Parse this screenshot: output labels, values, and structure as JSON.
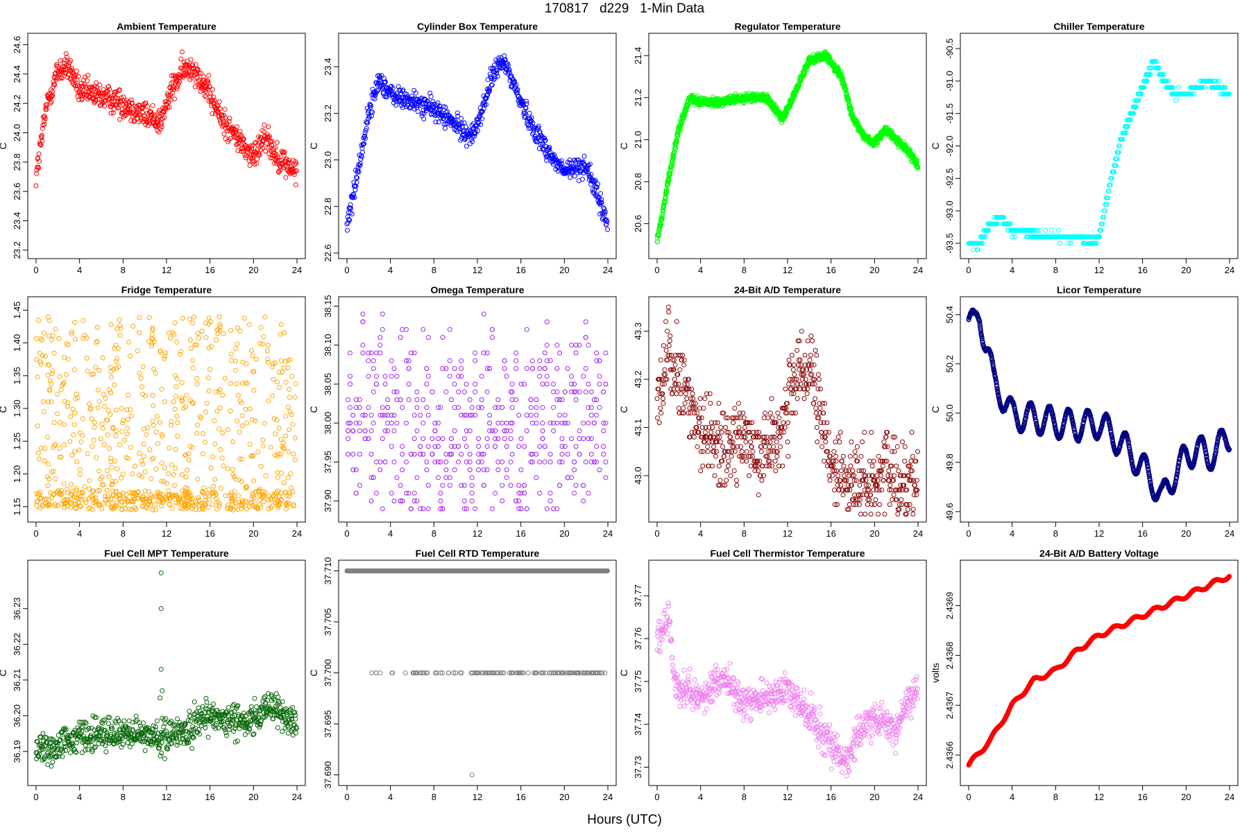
{
  "header": {
    "title": "170817   d229   1-Min Data"
  },
  "footer": {
    "xlabel": "Hours (UTC)"
  },
  "chart_data": [
    {
      "type": "scatter",
      "title": "Ambient Temperature",
      "ylabel": "C",
      "color": "#ff0000",
      "xlim": [
        0,
        24
      ],
      "ylim": [
        23.18,
        24.64
      ],
      "xticks": [
        0,
        4,
        8,
        12,
        16,
        20,
        24
      ],
      "yticks": [
        23.2,
        23.4,
        23.6,
        23.8,
        24.0,
        24.2,
        24.4,
        24.6
      ],
      "ydec": 1,
      "pattern": "noisy",
      "noise": 0.09,
      "min": 23.2,
      "max": 24.62,
      "profile": [
        [
          0,
          23.7
        ],
        [
          0.5,
          23.95
        ],
        [
          1,
          24.2
        ],
        [
          2,
          24.42
        ],
        [
          3,
          24.45
        ],
        [
          4,
          24.28
        ],
        [
          6,
          24.25
        ],
        [
          8,
          24.2
        ],
        [
          10,
          24.12
        ],
        [
          11.5,
          24.08
        ],
        [
          12.5,
          24.3
        ],
        [
          13.5,
          24.42
        ],
        [
          14.5,
          24.45
        ],
        [
          16,
          24.25
        ],
        [
          17,
          24.1
        ],
        [
          19,
          23.92
        ],
        [
          20,
          23.82
        ],
        [
          21,
          24.0
        ],
        [
          22,
          23.85
        ],
        [
          24,
          23.72
        ]
      ]
    },
    {
      "type": "scatter",
      "title": "Cylinder Box Temperature",
      "ylabel": "C",
      "color": "#0000ff",
      "xlim": [
        0,
        24
      ],
      "ylim": [
        22.6,
        23.52
      ],
      "xticks": [
        0,
        4,
        8,
        12,
        16,
        20,
        24
      ],
      "yticks": [
        22.6,
        22.8,
        23.0,
        23.2,
        23.4
      ],
      "ydec": 1,
      "pattern": "noisy",
      "noise": 0.045,
      "min": 22.62,
      "max": 23.5,
      "profile": [
        [
          0,
          22.72
        ],
        [
          1,
          22.95
        ],
        [
          2,
          23.2
        ],
        [
          3,
          23.35
        ],
        [
          4,
          23.28
        ],
        [
          6,
          23.25
        ],
        [
          8,
          23.22
        ],
        [
          10,
          23.15
        ],
        [
          11.5,
          23.1
        ],
        [
          12.5,
          23.22
        ],
        [
          13.5,
          23.38
        ],
        [
          14.5,
          23.42
        ],
        [
          16,
          23.25
        ],
        [
          17,
          23.15
        ],
        [
          19,
          23.0
        ],
        [
          20,
          22.95
        ],
        [
          22,
          22.98
        ],
        [
          24,
          22.72
        ]
      ]
    },
    {
      "type": "scatter",
      "title": "Regulator Temperature",
      "ylabel": "C",
      "color": "#00ff00",
      "xlim": [
        0,
        24
      ],
      "ylim": [
        20.46,
        21.48
      ],
      "xticks": [
        0,
        4,
        8,
        12,
        16,
        20,
        24
      ],
      "yticks": [
        20.6,
        20.8,
        21.0,
        21.2,
        21.4
      ],
      "ydec": 1,
      "pattern": "smooth",
      "noise": 0.018,
      "min": 20.5,
      "max": 21.46,
      "profile": [
        [
          0,
          20.52
        ],
        [
          0.5,
          20.65
        ],
        [
          1,
          20.8
        ],
        [
          2,
          21.05
        ],
        [
          3,
          21.2
        ],
        [
          4,
          21.18
        ],
        [
          6,
          21.18
        ],
        [
          8,
          21.2
        ],
        [
          10,
          21.2
        ],
        [
          11.5,
          21.1
        ],
        [
          12.5,
          21.2
        ],
        [
          14,
          21.38
        ],
        [
          15.5,
          21.4
        ],
        [
          17,
          21.3
        ],
        [
          18,
          21.1
        ],
        [
          19,
          21.02
        ],
        [
          20,
          20.98
        ],
        [
          21,
          21.05
        ],
        [
          22,
          21.0
        ],
        [
          23,
          20.95
        ],
        [
          24,
          20.88
        ]
      ]
    },
    {
      "type": "scatter",
      "title": "Chiller Temperature",
      "ylabel": "C",
      "color": "#00ffff",
      "xlim": [
        0,
        24
      ],
      "ylim": [
        -93.65,
        -90.35
      ],
      "xticks": [
        0,
        4,
        8,
        12,
        16,
        20,
        24
      ],
      "yticks": [
        -93.5,
        -93.0,
        -92.5,
        -92.0,
        -91.5,
        -91.0,
        -90.5
      ],
      "ydec": 1,
      "pattern": "step",
      "step": 0.1,
      "noise": 0.05,
      "min": -93.6,
      "max": -90.4,
      "profile": [
        [
          0,
          -93.5
        ],
        [
          1,
          -93.5
        ],
        [
          2,
          -93.2
        ],
        [
          3,
          -93.1
        ],
        [
          4,
          -93.3
        ],
        [
          6,
          -93.35
        ],
        [
          8,
          -93.4
        ],
        [
          10,
          -93.4
        ],
        [
          11.5,
          -93.45
        ],
        [
          12,
          -93.4
        ],
        [
          13,
          -92.6
        ],
        [
          14,
          -91.9
        ],
        [
          15,
          -91.5
        ],
        [
          16,
          -91.1
        ],
        [
          17,
          -90.7
        ],
        [
          18,
          -91.0
        ],
        [
          19,
          -91.2
        ],
        [
          20,
          -91.2
        ],
        [
          21,
          -91.1
        ],
        [
          22,
          -91.0
        ],
        [
          23,
          -91.1
        ],
        [
          24,
          -91.2
        ]
      ]
    },
    {
      "type": "scatter",
      "title": "Fridge Temperature",
      "ylabel": "C",
      "color": "#ffa500",
      "xlim": [
        0,
        24
      ],
      "ylim": [
        1.135,
        1.462
      ],
      "xticks": [
        0,
        4,
        8,
        12,
        16,
        20,
        24
      ],
      "yticks": [
        1.15,
        1.2,
        1.25,
        1.3,
        1.35,
        1.4,
        1.45
      ],
      "ydec": 2,
      "pattern": "uniform",
      "min": 1.145,
      "max": 1.44
    },
    {
      "type": "scatter",
      "title": "Omega Temperature",
      "ylabel": "C",
      "color": "#a020f0",
      "xlim": [
        0,
        24
      ],
      "ylim": [
        37.88,
        38.155
      ],
      "xticks": [
        0,
        4,
        8,
        12,
        16,
        20,
        24
      ],
      "yticks": [
        37.9,
        37.95,
        38.0,
        38.05,
        38.1,
        38.15
      ],
      "ydec": 2,
      "pattern": "bands",
      "step": 0.01,
      "min": 37.89,
      "max": 38.15,
      "center": 38.0
    },
    {
      "type": "scatter",
      "title": "24-Bit A/D Temperature",
      "ylabel": "C",
      "color": "#8b0000",
      "xlim": [
        0,
        24
      ],
      "ylim": [
        42.915,
        43.36
      ],
      "xticks": [
        0,
        4,
        8,
        12,
        16,
        20,
        24
      ],
      "yticks": [
        43.0,
        43.1,
        43.2,
        43.3
      ],
      "ydec": 1,
      "pattern": "step",
      "step": 0.01,
      "noise": 0.08,
      "min": 42.92,
      "max": 43.36,
      "profile": [
        [
          0,
          43.15
        ],
        [
          1,
          43.25
        ],
        [
          2,
          43.2
        ],
        [
          3,
          43.15
        ],
        [
          4,
          43.1
        ],
        [
          6,
          43.05
        ],
        [
          8,
          43.08
        ],
        [
          10,
          43.05
        ],
        [
          11,
          43.08
        ],
        [
          12,
          43.15
        ],
        [
          13,
          43.2
        ],
        [
          14,
          43.22
        ],
        [
          15,
          43.12
        ],
        [
          16,
          43.02
        ],
        [
          17,
          43.0
        ],
        [
          19,
          42.98
        ],
        [
          20,
          42.99
        ],
        [
          21,
          43.02
        ],
        [
          22,
          42.98
        ],
        [
          24,
          43.0
        ]
      ]
    },
    {
      "type": "scatter",
      "title": "Licor Temperature",
      "ylabel": "C",
      "color": "#000080",
      "xlim": [
        0,
        24
      ],
      "ylim": [
        49.58,
        50.45
      ],
      "xticks": [
        0,
        4,
        8,
        12,
        16,
        20,
        24
      ],
      "yticks": [
        49.6,
        49.8,
        50.0,
        50.2,
        50.4
      ],
      "ydec": 1,
      "pattern": "wave",
      "amp": 0.06,
      "period": 1.75,
      "noise": 0.004,
      "min": 49.6,
      "max": 50.44,
      "profile": [
        [
          0,
          50.38
        ],
        [
          0.5,
          50.35
        ],
        [
          1,
          50.4
        ],
        [
          1.8,
          50.25
        ],
        [
          2.3,
          50.12
        ],
        [
          3,
          50.08
        ],
        [
          4,
          49.99
        ],
        [
          6,
          49.98
        ],
        [
          8,
          49.96
        ],
        [
          10,
          49.95
        ],
        [
          11,
          49.95
        ],
        [
          12,
          49.96
        ],
        [
          13,
          49.92
        ],
        [
          14,
          49.88
        ],
        [
          15,
          49.83
        ],
        [
          16,
          49.78
        ],
        [
          17,
          49.72
        ],
        [
          17.8,
          49.65
        ],
        [
          19,
          49.76
        ],
        [
          20,
          49.82
        ],
        [
          21,
          49.86
        ],
        [
          22,
          49.82
        ],
        [
          23,
          49.86
        ],
        [
          24,
          49.91
        ]
      ]
    },
    {
      "type": "scatter",
      "title": "Fuel Cell MPT Temperature",
      "ylabel": "C",
      "color": "#006400",
      "xlim": [
        0,
        24
      ],
      "ylim": [
        36.182,
        36.242
      ],
      "xticks": [
        0,
        4,
        8,
        12,
        16,
        20,
        24
      ],
      "yticks": [
        36.19,
        36.2,
        36.21,
        36.22,
        36.23
      ],
      "ydec": 2,
      "pattern": "noisy",
      "noise": 0.0045,
      "min": 36.185,
      "max": 36.241,
      "profile": [
        [
          0,
          36.19
        ],
        [
          2,
          36.192
        ],
        [
          4,
          36.194
        ],
        [
          6,
          36.195
        ],
        [
          8,
          36.195
        ],
        [
          10,
          36.195
        ],
        [
          12,
          36.194
        ],
        [
          14,
          36.196
        ],
        [
          16,
          36.2
        ],
        [
          18,
          36.199
        ],
        [
          20,
          36.199
        ],
        [
          22,
          36.202
        ],
        [
          24,
          36.197
        ]
      ],
      "outliers": [
        [
          11.5,
          36.24
        ],
        [
          11.5,
          36.23
        ],
        [
          11.5,
          36.213
        ],
        [
          11.4,
          36.205
        ],
        [
          11.6,
          36.207
        ]
      ]
    },
    {
      "type": "scatter",
      "title": "Fuel Cell RTD Temperature",
      "ylabel": "C",
      "color": "#808080",
      "xlim": [
        0,
        24
      ],
      "ylim": [
        37.6895,
        37.7105
      ],
      "xticks": [
        0,
        4,
        8,
        12,
        16,
        20,
        24
      ],
      "yticks": [
        37.69,
        37.695,
        37.7,
        37.705,
        37.71
      ],
      "ydec": 3,
      "pattern": "two-level",
      "high": 37.71,
      "low": 37.7,
      "min": 37.69,
      "max": 37.71,
      "outliers": [
        [
          11.5,
          37.69
        ]
      ]
    },
    {
      "type": "scatter",
      "title": "Fuel Cell Thermistor Temperature",
      "ylabel": "C",
      "color": "#ee82ee",
      "xlim": [
        0,
        24
      ],
      "ylim": [
        37.727,
        37.777
      ],
      "xticks": [
        0,
        4,
        8,
        12,
        16,
        20,
        24
      ],
      "yticks": [
        37.73,
        37.74,
        37.75,
        37.76,
        37.77
      ],
      "ydec": 2,
      "pattern": "noisy",
      "noise": 0.004,
      "min": 37.728,
      "max": 37.776,
      "profile": [
        [
          0,
          37.76
        ],
        [
          0.5,
          37.762
        ],
        [
          1,
          37.766
        ],
        [
          1.5,
          37.752
        ],
        [
          2,
          37.748
        ],
        [
          4,
          37.746
        ],
        [
          6,
          37.751
        ],
        [
          8,
          37.745
        ],
        [
          10,
          37.746
        ],
        [
          12,
          37.748
        ],
        [
          14,
          37.742
        ],
        [
          16,
          37.735
        ],
        [
          17.5,
          37.732
        ],
        [
          19,
          37.74
        ],
        [
          20,
          37.742
        ],
        [
          22,
          37.738
        ],
        [
          23,
          37.745
        ],
        [
          24,
          37.748
        ]
      ]
    },
    {
      "type": "scatter",
      "title": "24-Bit A/D Battery Voltage",
      "ylabel": "volts",
      "color": "#ff0000",
      "xlim": [
        0,
        24
      ],
      "ylim": [
        2.43655,
        2.43698
      ],
      "xticks": [
        0,
        4,
        8,
        12,
        16,
        20,
        24
      ],
      "yticks": [
        2.4366,
        2.4367,
        2.4368,
        2.4369
      ],
      "ydec": 4,
      "pattern": "wave",
      "amp": 4.5e-06,
      "period": 1.85,
      "noise": 5e-07,
      "min": 2.43657,
      "max": 2.43697,
      "profile": [
        [
          0,
          2.43658
        ],
        [
          2,
          2.43663
        ],
        [
          4,
          2.4367
        ],
        [
          6,
          2.43675
        ],
        [
          8,
          2.43677
        ],
        [
          10,
          2.43681
        ],
        [
          12,
          2.43684
        ],
        [
          14,
          2.43686
        ],
        [
          16,
          2.43688
        ],
        [
          18,
          2.4369
        ],
        [
          20,
          2.43692
        ],
        [
          22,
          2.43694
        ],
        [
          24,
          2.43696
        ]
      ]
    }
  ]
}
